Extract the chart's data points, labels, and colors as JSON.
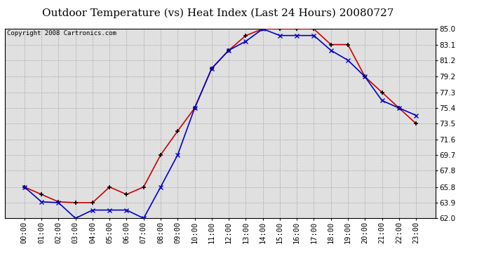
{
  "title": "Outdoor Temperature (vs) Heat Index (Last 24 Hours) 20080727",
  "copyright": "Copyright 2008 Cartronics.com",
  "x_labels": [
    "00:00",
    "01:00",
    "02:00",
    "03:00",
    "04:00",
    "05:00",
    "06:00",
    "07:00",
    "08:00",
    "09:00",
    "10:00",
    "11:00",
    "12:00",
    "13:00",
    "14:00",
    "15:00",
    "16:00",
    "17:00",
    "18:00",
    "19:00",
    "20:00",
    "21:00",
    "22:00",
    "23:00"
  ],
  "temp_red": [
    65.8,
    64.9,
    64.0,
    63.9,
    63.9,
    65.8,
    64.9,
    65.8,
    69.7,
    72.6,
    75.4,
    80.2,
    82.4,
    84.2,
    85.0,
    85.0,
    85.0,
    85.0,
    83.1,
    83.1,
    79.2,
    77.3,
    75.4,
    73.5
  ],
  "temp_blue": [
    65.8,
    64.0,
    63.9,
    62.0,
    63.0,
    63.0,
    63.0,
    62.0,
    65.8,
    69.7,
    75.4,
    80.2,
    82.4,
    83.5,
    85.0,
    84.2,
    84.2,
    84.2,
    82.4,
    81.2,
    79.2,
    76.3,
    75.4,
    74.5
  ],
  "red_color": "#cc0000",
  "blue_color": "#0000cc",
  "marker_red": "#000000",
  "marker_blue": "#0000cc",
  "bg_color": "#ffffff",
  "plot_bg_color": "#e0e0e0",
  "grid_color": "#aaaaaa",
  "ylim": [
    62.0,
    85.0
  ],
  "yticks": [
    62.0,
    63.9,
    65.8,
    67.8,
    69.7,
    71.6,
    73.5,
    75.4,
    77.3,
    79.2,
    81.2,
    83.1,
    85.0
  ],
  "title_fontsize": 11,
  "copyright_fontsize": 6.5,
  "tick_fontsize": 7.5
}
